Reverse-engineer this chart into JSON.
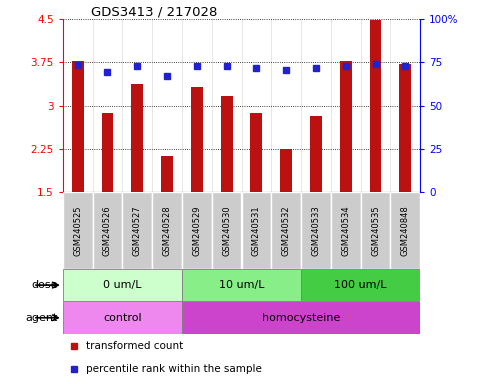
{
  "title": "GDS3413 / 217028",
  "samples": [
    "GSM240525",
    "GSM240526",
    "GSM240527",
    "GSM240528",
    "GSM240529",
    "GSM240530",
    "GSM240531",
    "GSM240532",
    "GSM240533",
    "GSM240534",
    "GSM240535",
    "GSM240848"
  ],
  "bar_values": [
    3.78,
    2.88,
    3.38,
    2.12,
    3.32,
    3.17,
    2.88,
    2.25,
    2.82,
    3.78,
    4.48,
    3.72
  ],
  "blue_values": [
    3.7,
    3.58,
    3.68,
    3.52,
    3.68,
    3.68,
    3.65,
    3.62,
    3.65,
    3.68,
    3.72,
    3.68
  ],
  "ylim": [
    1.5,
    4.5
  ],
  "yticks": [
    1.5,
    2.25,
    3.0,
    3.75,
    4.5
  ],
  "ytick_labels": [
    "1.5",
    "2.25",
    "3",
    "3.75",
    "4.5"
  ],
  "right_yticks": [
    0,
    25,
    50,
    75,
    100
  ],
  "right_ytick_labels": [
    "0",
    "25",
    "50",
    "75",
    "100%"
  ],
  "bar_color": "#bb1111",
  "blue_color": "#2222cc",
  "dose_groups": [
    {
      "label": "0 um/L",
      "start": 0,
      "end": 4,
      "color": "#ccffcc"
    },
    {
      "label": "10 um/L",
      "start": 4,
      "end": 8,
      "color": "#88ee88"
    },
    {
      "label": "100 um/L",
      "start": 8,
      "end": 12,
      "color": "#44cc44"
    }
  ],
  "agent_groups": [
    {
      "label": "control",
      "start": 0,
      "end": 4,
      "color": "#ee88ee"
    },
    {
      "label": "homocysteine",
      "start": 4,
      "end": 12,
      "color": "#cc44cc"
    }
  ],
  "dose_label": "dose",
  "agent_label": "agent",
  "legend_bar_label": "transformed count",
  "legend_blue_label": "percentile rank within the sample",
  "sample_box_color": "#cccccc",
  "plot_bg_color": "#ffffff"
}
